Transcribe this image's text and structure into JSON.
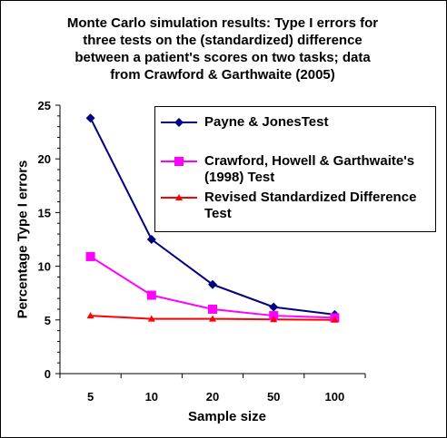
{
  "chart_data": {
    "type": "line",
    "title": "Monte Carlo simulation results: Type I errors for three tests on the (standardized) difference between a patient's scores on two tasks; data from Crawford & Garthwaite (2005)",
    "title_lines": [
      "Monte Carlo simulation results: Type I errors for",
      "three tests on the (standardized) difference",
      "between a patient's scores on two tasks; data",
      "from Crawford & Garthwaite (2005)"
    ],
    "xlabel": "Sample size",
    "ylabel": "Percentage Type I errors",
    "categories": [
      "5",
      "10",
      "20",
      "50",
      "100"
    ],
    "ylim": [
      0,
      25
    ],
    "yticks": [
      0,
      5,
      10,
      15,
      20,
      25
    ],
    "grid": false,
    "legend_position": "top-right",
    "series": [
      {
        "name": "Payne & JonesTest",
        "legend_lines": [
          "Payne & JonesTest"
        ],
        "color": "#000080",
        "marker": "diamond",
        "values": [
          23.8,
          12.5,
          8.3,
          6.2,
          5.5
        ]
      },
      {
        "name": "Crawford, Howell & Garthwaite's (1998) Test",
        "legend_lines": [
          "Crawford, Howell & Garthwaite's",
          "(1998) Test"
        ],
        "color": "#ff00ff",
        "marker": "square",
        "values": [
          10.9,
          7.3,
          6.0,
          5.4,
          5.2
        ]
      },
      {
        "name": "Revised Standardized Difference Test",
        "legend_lines": [
          "Revised Standardized Difference",
          "Test"
        ],
        "color": "#ff0000",
        "marker": "triangle",
        "values": [
          5.4,
          5.1,
          5.1,
          5.05,
          5.0
        ]
      }
    ]
  }
}
